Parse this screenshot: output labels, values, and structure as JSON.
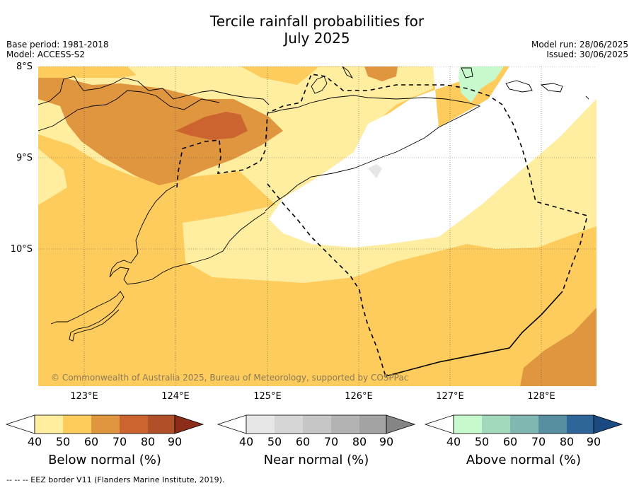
{
  "header": {
    "title_line1": "Tercile rainfall probabilities for",
    "title_line2": "July 2025",
    "base_period": "Base period: 1981-2018",
    "model": "Model: ACCESS-S2",
    "model_run": "Model run: 28/06/2025",
    "issued": "Issued: 30/06/2025"
  },
  "map": {
    "lat_labels": [
      "8°S",
      "9°S",
      "10°S"
    ],
    "lon_labels": [
      "123°E",
      "124°E",
      "125°E",
      "126°E",
      "127°E",
      "128°E"
    ],
    "copyright": "© Commonwealth of Australia 2025, Bureau of Meteorology, supported by COSPPac",
    "extent": {
      "lon": [
        122.5,
        128.6
      ],
      "lat": [
        -8.0,
        -11.5
      ]
    }
  },
  "colorbars": {
    "below_normal": {
      "title": "Below normal (%)",
      "ticks": [
        "40",
        "50",
        "60",
        "70",
        "80",
        "90"
      ],
      "colors": [
        "#ffeda0",
        "#fecc5c",
        "#e0953f",
        "#cc6430",
        "#b04f28",
        "#8c2d1a"
      ]
    },
    "near_normal": {
      "title": "Near normal (%)",
      "ticks": [
        "40",
        "50",
        "60",
        "70",
        "80",
        "90"
      ],
      "colors": [
        "#e6e6e6",
        "#d6d6d6",
        "#c6c6c6",
        "#b3b3b3",
        "#a3a3a3",
        "#858585"
      ]
    },
    "above_normal": {
      "title": "Above normal (%)",
      "ticks": [
        "40",
        "50",
        "60",
        "70",
        "80",
        "90"
      ],
      "colors": [
        "#c7f9cc",
        "#a2d9bd",
        "#80b7b0",
        "#588fa0",
        "#2f6699",
        "#1a4a80"
      ]
    }
  },
  "footer": {
    "legend_note": "-- -- -- EEZ border V11 (Flanders Marine Institute, 2019)."
  }
}
